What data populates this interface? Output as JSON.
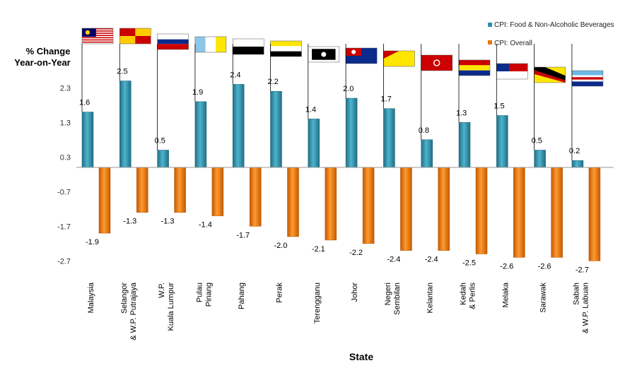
{
  "chart_data": {
    "type": "bar",
    "y_title_line1": "% Change",
    "y_title_line2": "Year-on-Year",
    "xlabel": "State",
    "y_ticks": [
      2.3,
      1.3,
      0.3,
      -0.7,
      -1.7,
      -2.7
    ],
    "y_tick_labels": [
      "2.3",
      "1.3",
      "0.3",
      "-0.7",
      "-1.7",
      "-2.7"
    ],
    "ylim": [
      -2.7,
      2.5
    ],
    "legend_position": "top-right",
    "categories": [
      [
        "Malaysia"
      ],
      [
        "Selangor",
        "& W.P. Putrajaya"
      ],
      [
        "W.P.",
        "Kuala Lumpur"
      ],
      [
        "Pulau",
        "Pinang"
      ],
      [
        "Pahang"
      ],
      [
        "Perak"
      ],
      [
        "Terengganu"
      ],
      [
        "Johor"
      ],
      [
        "Negeri",
        "Sembilan"
      ],
      [
        "Kelantan"
      ],
      [
        "Kedah",
        "& Perlis"
      ],
      [
        "Melaka"
      ],
      [
        "Sarawak"
      ],
      [
        "Sabah",
        "& W.P. Labuan"
      ]
    ],
    "series": [
      {
        "name": "CPI: Food & Non-Alcoholic Beverages",
        "color": "#2f8ea6",
        "values": [
          1.6,
          2.5,
          0.5,
          1.9,
          2.4,
          2.2,
          1.4,
          2.0,
          1.7,
          0.8,
          1.3,
          1.5,
          0.5,
          0.2
        ],
        "labels": [
          "1.6",
          "2.5",
          "0.5",
          "1.9",
          "2.4",
          "2.2",
          "1.4",
          "2.0",
          "1.7",
          "0.8",
          "1.3",
          "1.5",
          "0.5",
          "0.2"
        ]
      },
      {
        "name": "CPI: Overall",
        "color": "#e8760f",
        "values": [
          -1.9,
          -1.3,
          -1.3,
          -1.4,
          -1.7,
          -2.0,
          -2.1,
          -2.2,
          -2.4,
          -2.4,
          -2.5,
          -2.6,
          -2.6,
          -2.7
        ],
        "labels": [
          "-1.9",
          "-1.3",
          "-1.3",
          "-1.4",
          "-1.7",
          "-2.0",
          "-2.1",
          "-2.2",
          "-2.4",
          "-2.4",
          "-2.5",
          "-2.6",
          "-2.6",
          "-2.7"
        ]
      }
    ],
    "flag_icons": [
      "malaysia-flag-icon",
      "selangor-flag-icon",
      "kuala-lumpur-flag-icon",
      "penang-flag-icon",
      "pahang-flag-icon",
      "perak-flag-icon",
      "terengganu-flag-icon",
      "johor-flag-icon",
      "negeri-sembilan-flag-icon",
      "kelantan-flag-icon",
      "kedah-flag-icon",
      "melaka-flag-icon",
      "sarawak-flag-icon",
      "sabah-flag-icon"
    ]
  }
}
